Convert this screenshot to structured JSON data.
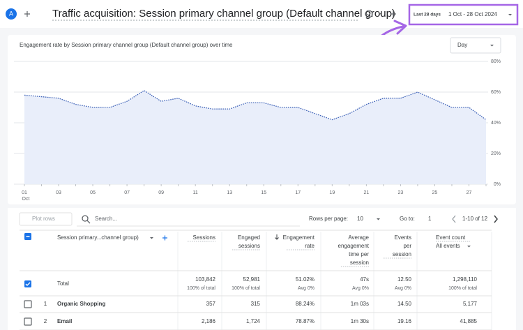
{
  "header": {
    "avatar": "A",
    "title": "Traffic acquisition: Session primary channel group (Default channel group)",
    "date_preset": "Last 28 days",
    "date_range": "1 Oct - 28 Oct 2024"
  },
  "chart_data": {
    "type": "line",
    "title": "Engagement rate by Session primary channel group (Default channel group) over time",
    "granularity": "Day",
    "categories": [
      "01",
      null,
      "03",
      null,
      "05",
      null,
      "07",
      null,
      "09",
      null,
      "11",
      null,
      "13",
      null,
      "15",
      null,
      "17",
      null,
      "19",
      null,
      "21",
      null,
      "23",
      null,
      "25",
      null,
      "27",
      null
    ],
    "x_sublabel": "Oct",
    "values": [
      58,
      57,
      56,
      52,
      50,
      50,
      54,
      61,
      54,
      56,
      51,
      49,
      49,
      53,
      53,
      50,
      50,
      46,
      42,
      46,
      52,
      56,
      56,
      60,
      55,
      50,
      50,
      42
    ],
    "color": "#3f63b8",
    "area_color": "#e9eefa",
    "ylim": [
      0,
      80
    ],
    "yticks": [
      {
        "value": 0,
        "label": "0%"
      },
      {
        "value": 20,
        "label": "20%"
      },
      {
        "value": 40,
        "label": "40%"
      },
      {
        "value": 60,
        "label": "60%"
      },
      {
        "value": 80,
        "label": "80%"
      }
    ],
    "grid": true
  },
  "table": {
    "toolbar": {
      "plot_rows": "Plot rows",
      "search": "Search...",
      "rows_per_page_label": "Rows per page:",
      "rows_per_page": "10",
      "go_to_label": "Go to:",
      "go_to": "1",
      "pagination": "1-10 of 12"
    },
    "dimension_header": "Session primary...channel group)",
    "columns": [
      [
        "Sessions"
      ],
      [
        "Engaged",
        "sessions"
      ],
      [
        "Engagement",
        "rate"
      ],
      [
        "Average",
        "engagement",
        "time per",
        "session"
      ],
      [
        "Events",
        "per",
        "session"
      ],
      [
        "Event count"
      ]
    ],
    "event_filter": "All events",
    "total": {
      "label": "Total",
      "values": [
        "103,842",
        "52,981",
        "51.02%",
        "47s",
        "12.50",
        "1,298,110"
      ],
      "notes": [
        "100% of total",
        "100% of total",
        "Avg 0%",
        "Avg 0%",
        "Avg 0%",
        "100% of total"
      ]
    },
    "rows": [
      [
        "1",
        "Organic Shopping",
        "357",
        "315",
        "88.24%",
        "1m 03s",
        "14.50",
        "5,177"
      ],
      [
        "2",
        "Email",
        "2,186",
        "1,724",
        "78.87%",
        "1m 30s",
        "19.16",
        "41,885"
      ]
    ]
  }
}
